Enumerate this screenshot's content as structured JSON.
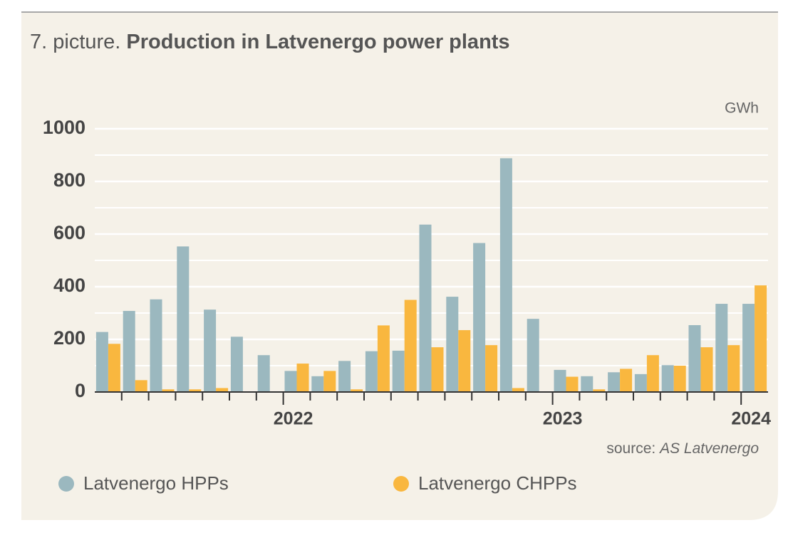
{
  "chart_data": {
    "type": "bar",
    "figure_label": "7. picture.",
    "title": "Production in Latvenergo power plants",
    "unit": "GWh",
    "source_label": "source:",
    "source": "AS Latvenergo",
    "categories": [
      null,
      null,
      null,
      null,
      null,
      null,
      null,
      "2022",
      null,
      null,
      null,
      null,
      null,
      null,
      null,
      null,
      null,
      "2023",
      null,
      null,
      null,
      null,
      null,
      null,
      "2024"
    ],
    "series": [
      {
        "name": "Latvenergo HPPs",
        "color": "#9bb8bf",
        "values": [
          228,
          308,
          352,
          553,
          313,
          210,
          140,
          80,
          60,
          118,
          155,
          157,
          636,
          362,
          566,
          888,
          278,
          84,
          60,
          75,
          68,
          102,
          254,
          335,
          335
        ]
      },
      {
        "name": "Latvenergo CHPPs",
        "color": "#f9b73f",
        "values": [
          183,
          45,
          10,
          10,
          15,
          0,
          0,
          108,
          80,
          10,
          253,
          350,
          170,
          235,
          178,
          15,
          0,
          58,
          10,
          88,
          140,
          100,
          170,
          178,
          405
        ]
      }
    ],
    "ylim": [
      0,
      1000
    ],
    "yticks": [
      0,
      200,
      400,
      600,
      800,
      1000
    ],
    "minor_yticks": [
      100,
      300,
      500,
      700,
      900
    ],
    "grid": true
  }
}
